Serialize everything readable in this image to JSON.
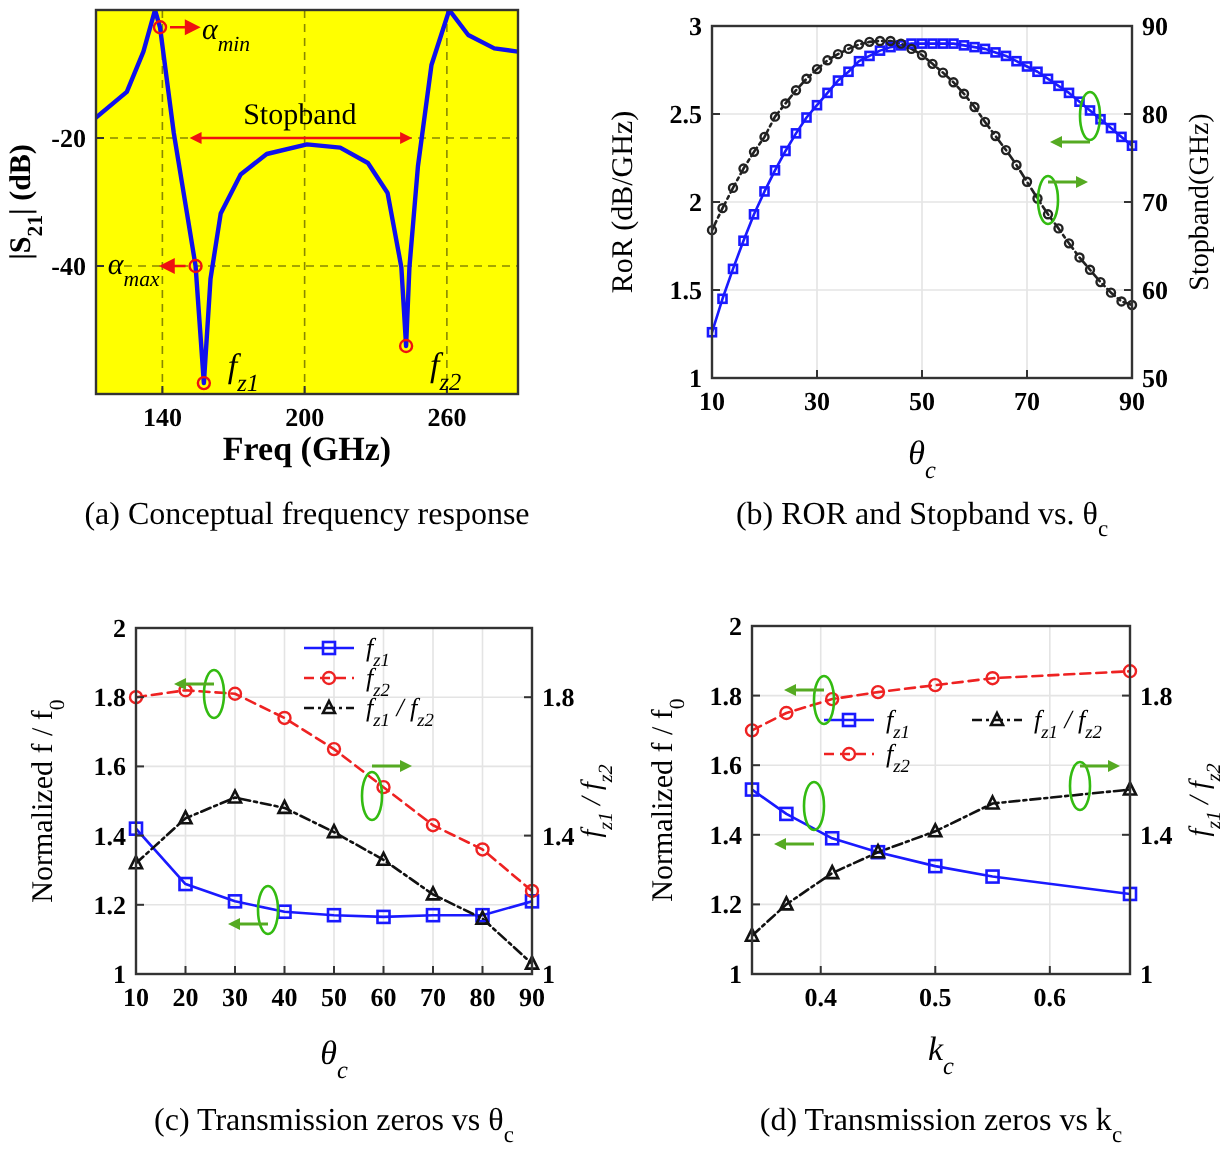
{
  "chart_data": [
    {
      "type": "line",
      "title": "(a) Conceptual frequency response",
      "xlabel": "Freq (GHz)",
      "ylabel": "|S$_{21}$| (dB)",
      "xlim": [
        112,
        290
      ],
      "xticks": [
        140,
        200,
        260
      ],
      "ylim": [
        -60,
        0
      ],
      "yticks": [
        -40,
        -20
      ],
      "grid": true,
      "legend": false,
      "series": [
        {
          "type": "line",
          "color": "#1010ee",
          "marker": "none",
          "line_style": "solid",
          "x": [
            112,
            125,
            132,
            136.9,
            139,
            144.8,
            150.4,
            154,
            157.5,
            160.3,
            164.6,
            173,
            184,
            201,
            215,
            226.7,
            235,
            240.8,
            242.8,
            244.2,
            247.8,
            253.5,
            261,
            269,
            280,
            290
          ],
          "values": [
            -16.8,
            -12.8,
            -6.5,
            0,
            -2.7,
            -19.2,
            -31.8,
            -40,
            -58.3,
            -42,
            -31.8,
            -25.7,
            -22.5,
            -21,
            -21.5,
            -23.9,
            -28.6,
            -40.2,
            -52.5,
            -40.2,
            -24.4,
            -8.6,
            0,
            -3.9,
            -6,
            -6.5
          ]
        },
        {
          "type": "scatter",
          "color": "#ee1111",
          "marker": "circle",
          "x": [
            139,
            154,
            157.5,
            242.8
          ],
          "values": [
            -2.7,
            -40,
            -58.3,
            -52.5
          ]
        }
      ],
      "annotations": [
        {
          "text": "α$_{min}$",
          "x": 139,
          "y": -2.7
        },
        {
          "text": "α$_{max}$",
          "x": 154,
          "y": -40
        },
        {
          "text": "Stopband",
          "x": 198,
          "y": -20
        },
        {
          "text": "f$_{z1}$",
          "x": 157.5,
          "y": -58.3
        },
        {
          "text": "f$_{z2}$",
          "x": 242.8,
          "y": -52.5
        }
      ]
    },
    {
      "type": "line",
      "title": "(b) ROR and Stopband vs. θ$_{c}$",
      "xlabel": "θ$_{c}$",
      "ylabel": "RoR (dB/GHz)",
      "y2label": "Stopband(GHz)",
      "xlim": [
        10,
        90
      ],
      "xticks": [
        10,
        30,
        50,
        70,
        90
      ],
      "ylim": [
        1,
        3
      ],
      "yticks": [
        1,
        1.5,
        2,
        2.5,
        3
      ],
      "y2lim": [
        50,
        90
      ],
      "y2ticks": [
        50,
        60,
        70,
        80,
        90
      ],
      "grid": true,
      "legend": false,
      "x": [
        10,
        12,
        14,
        16,
        18,
        20,
        22,
        24,
        26,
        28,
        30,
        32,
        34,
        36,
        38,
        40,
        42,
        44,
        46,
        48,
        50,
        52,
        54,
        56,
        58,
        60,
        62,
        64,
        66,
        68,
        70,
        72,
        74,
        76,
        78,
        80,
        82,
        84,
        86,
        88,
        90
      ],
      "series": [
        {
          "color": "#1a1aff",
          "marker": "square",
          "line_style": "solid",
          "axis": "y",
          "values": [
            1.26,
            1.45,
            1.62,
            1.78,
            1.93,
            2.06,
            2.18,
            2.29,
            2.39,
            2.48,
            2.55,
            2.62,
            2.69,
            2.74,
            2.8,
            2.83,
            2.86,
            2.88,
            2.89,
            2.9,
            2.9,
            2.9,
            2.9,
            2.9,
            2.89,
            2.88,
            2.87,
            2.85,
            2.83,
            2.8,
            2.77,
            2.74,
            2.7,
            2.66,
            2.62,
            2.57,
            2.52,
            2.47,
            2.42,
            2.37,
            2.32
          ]
        },
        {
          "color": "#222222",
          "marker": "circle",
          "line_style": "dotted",
          "axis": "y2",
          "values": [
            66.8,
            69.3,
            71.6,
            73.8,
            75.7,
            77.4,
            79.7,
            81.2,
            82.7,
            84,
            85.1,
            86.1,
            86.8,
            87.4,
            87.9,
            88.2,
            88.3,
            88.3,
            88,
            87.4,
            86.7,
            85.7,
            84.7,
            83.6,
            82.3,
            80.8,
            79.1,
            77.5,
            75.9,
            74.2,
            72.3,
            70.4,
            68.6,
            67,
            65.3,
            63.7,
            62.3,
            60.9,
            59.7,
            58.7,
            58.3
          ]
        }
      ]
    },
    {
      "type": "line",
      "title": "(c) Transmission zeros vs θ$_{c}$",
      "xlabel": "θ$_{c}$",
      "ylabel": "Normalized f / f$_{0}$",
      "y2label": "f$_{z1}$ / f$_{z2}$",
      "xlim": [
        10,
        90
      ],
      "xticks": [
        10,
        20,
        30,
        40,
        50,
        60,
        70,
        80,
        90
      ],
      "ylim": [
        1,
        2
      ],
      "yticks": [
        1,
        1.2,
        1.4,
        1.6,
        1.8,
        2
      ],
      "y2lim": [
        1,
        2
      ],
      "y2ticks": [
        1,
        1.4,
        1.8
      ],
      "grid": true,
      "legend": "top",
      "x": [
        10,
        20,
        30,
        40,
        50,
        60,
        70,
        80,
        90
      ],
      "series": [
        {
          "name": "f$_{z1}$",
          "color": "#1a1aff",
          "marker": "square",
          "line_style": "solid",
          "axis": "y",
          "values": [
            1.42,
            1.26,
            1.21,
            1.18,
            1.17,
            1.165,
            1.17,
            1.17,
            1.21
          ]
        },
        {
          "name": "f$_{z2}$",
          "color": "#ee2222",
          "marker": "circle",
          "line_style": "dashed",
          "axis": "y",
          "values": [
            1.8,
            1.82,
            1.81,
            1.74,
            1.65,
            1.54,
            1.43,
            1.36,
            1.24
          ]
        },
        {
          "name": "f$_{z1}$ / f$_{z2}$",
          "color": "#111111",
          "marker": "triangle",
          "line_style": "dotted",
          "axis": "y2",
          "values": [
            1.32,
            1.45,
            1.51,
            1.48,
            1.41,
            1.33,
            1.23,
            1.16,
            1.03
          ]
        }
      ]
    },
    {
      "type": "line",
      "title": "(d) Transmission zeros vs k$_{c}$",
      "xlabel": "k$_{c}$",
      "ylabel": "Normalized f / f$_{0}$",
      "y2label": "f$_{z1}$ / f$_{z2}$",
      "xlim": [
        0.34,
        0.67
      ],
      "xticks": [
        0.4,
        0.5,
        0.6
      ],
      "ylim": [
        1,
        2
      ],
      "yticks": [
        1,
        1.2,
        1.4,
        1.6,
        1.8,
        2
      ],
      "y2lim": [
        1,
        2
      ],
      "y2ticks": [
        1,
        1.4,
        1.8
      ],
      "grid": true,
      "legend": "top",
      "x": [
        0.34,
        0.37,
        0.41,
        0.45,
        0.5,
        0.55,
        0.67
      ],
      "series": [
        {
          "name": "f$_{z1}$",
          "color": "#1a1aff",
          "marker": "square",
          "line_style": "solid",
          "axis": "y",
          "values": [
            1.53,
            1.46,
            1.39,
            1.35,
            1.31,
            1.28,
            1.23
          ]
        },
        {
          "name": "f$_{z2}$",
          "color": "#ee2222",
          "marker": "circle",
          "line_style": "dashed",
          "axis": "y",
          "values": [
            1.7,
            1.75,
            1.79,
            1.81,
            1.83,
            1.85,
            1.87
          ]
        },
        {
          "name": "f$_{z1}$ / f$_{z2}$",
          "color": "#111111",
          "marker": "triangle",
          "line_style": "dotted",
          "axis": "y2",
          "values": [
            1.11,
            1.2,
            1.29,
            1.35,
            1.41,
            1.49,
            1.53
          ]
        }
      ]
    }
  ]
}
